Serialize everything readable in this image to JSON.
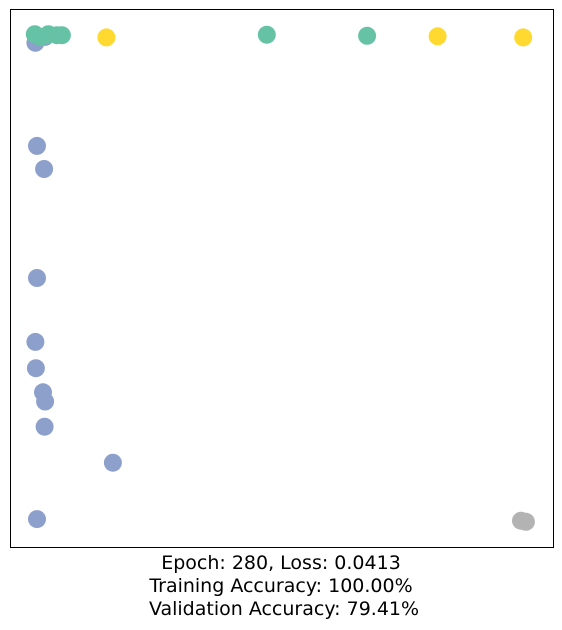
{
  "chart_data": {
    "type": "scatter",
    "xlim": [
      0,
      1
    ],
    "ylim": [
      0,
      1
    ],
    "axes_visible": false,
    "grid": false,
    "point_radius_note": "uniform markers",
    "colors": {
      "green": "#66c2a5",
      "yellow": "#ffd92f",
      "blue": "#8da0cb",
      "gray": "#b3b3b3"
    },
    "points": [
      {
        "x": 0.045,
        "y": 0.939,
        "color": "blue"
      },
      {
        "x": 0.063,
        "y": 0.95,
        "color": "blue"
      },
      {
        "x": 0.048,
        "y": 0.747,
        "color": "blue"
      },
      {
        "x": 0.061,
        "y": 0.704,
        "color": "blue"
      },
      {
        "x": 0.048,
        "y": 0.501,
        "color": "blue"
      },
      {
        "x": 0.045,
        "y": 0.382,
        "color": "blue"
      },
      {
        "x": 0.046,
        "y": 0.333,
        "color": "blue"
      },
      {
        "x": 0.059,
        "y": 0.288,
        "color": "blue"
      },
      {
        "x": 0.063,
        "y": 0.271,
        "color": "blue"
      },
      {
        "x": 0.062,
        "y": 0.224,
        "color": "blue"
      },
      {
        "x": 0.188,
        "y": 0.157,
        "color": "blue"
      },
      {
        "x": 0.048,
        "y": 0.052,
        "color": "blue"
      },
      {
        "x": 0.044,
        "y": 0.955,
        "color": "green"
      },
      {
        "x": 0.055,
        "y": 0.95,
        "color": "green"
      },
      {
        "x": 0.069,
        "y": 0.955,
        "color": "green"
      },
      {
        "x": 0.085,
        "y": 0.953,
        "color": "green"
      },
      {
        "x": 0.094,
        "y": 0.953,
        "color": "green"
      },
      {
        "x": 0.472,
        "y": 0.954,
        "color": "green"
      },
      {
        "x": 0.657,
        "y": 0.952,
        "color": "green"
      },
      {
        "x": 0.176,
        "y": 0.949,
        "color": "yellow"
      },
      {
        "x": 0.787,
        "y": 0.951,
        "color": "yellow"
      },
      {
        "x": 0.945,
        "y": 0.949,
        "color": "yellow"
      },
      {
        "x": 0.941,
        "y": 0.049,
        "color": "gray"
      },
      {
        "x": 0.95,
        "y": 0.047,
        "color": "gray"
      }
    ]
  },
  "caption": {
    "line1": "Epoch: 280, Loss: 0.0413",
    "line2": "Training Accuracy: 100.00%",
    "line3": " Validation Accuracy: 79.41%"
  }
}
